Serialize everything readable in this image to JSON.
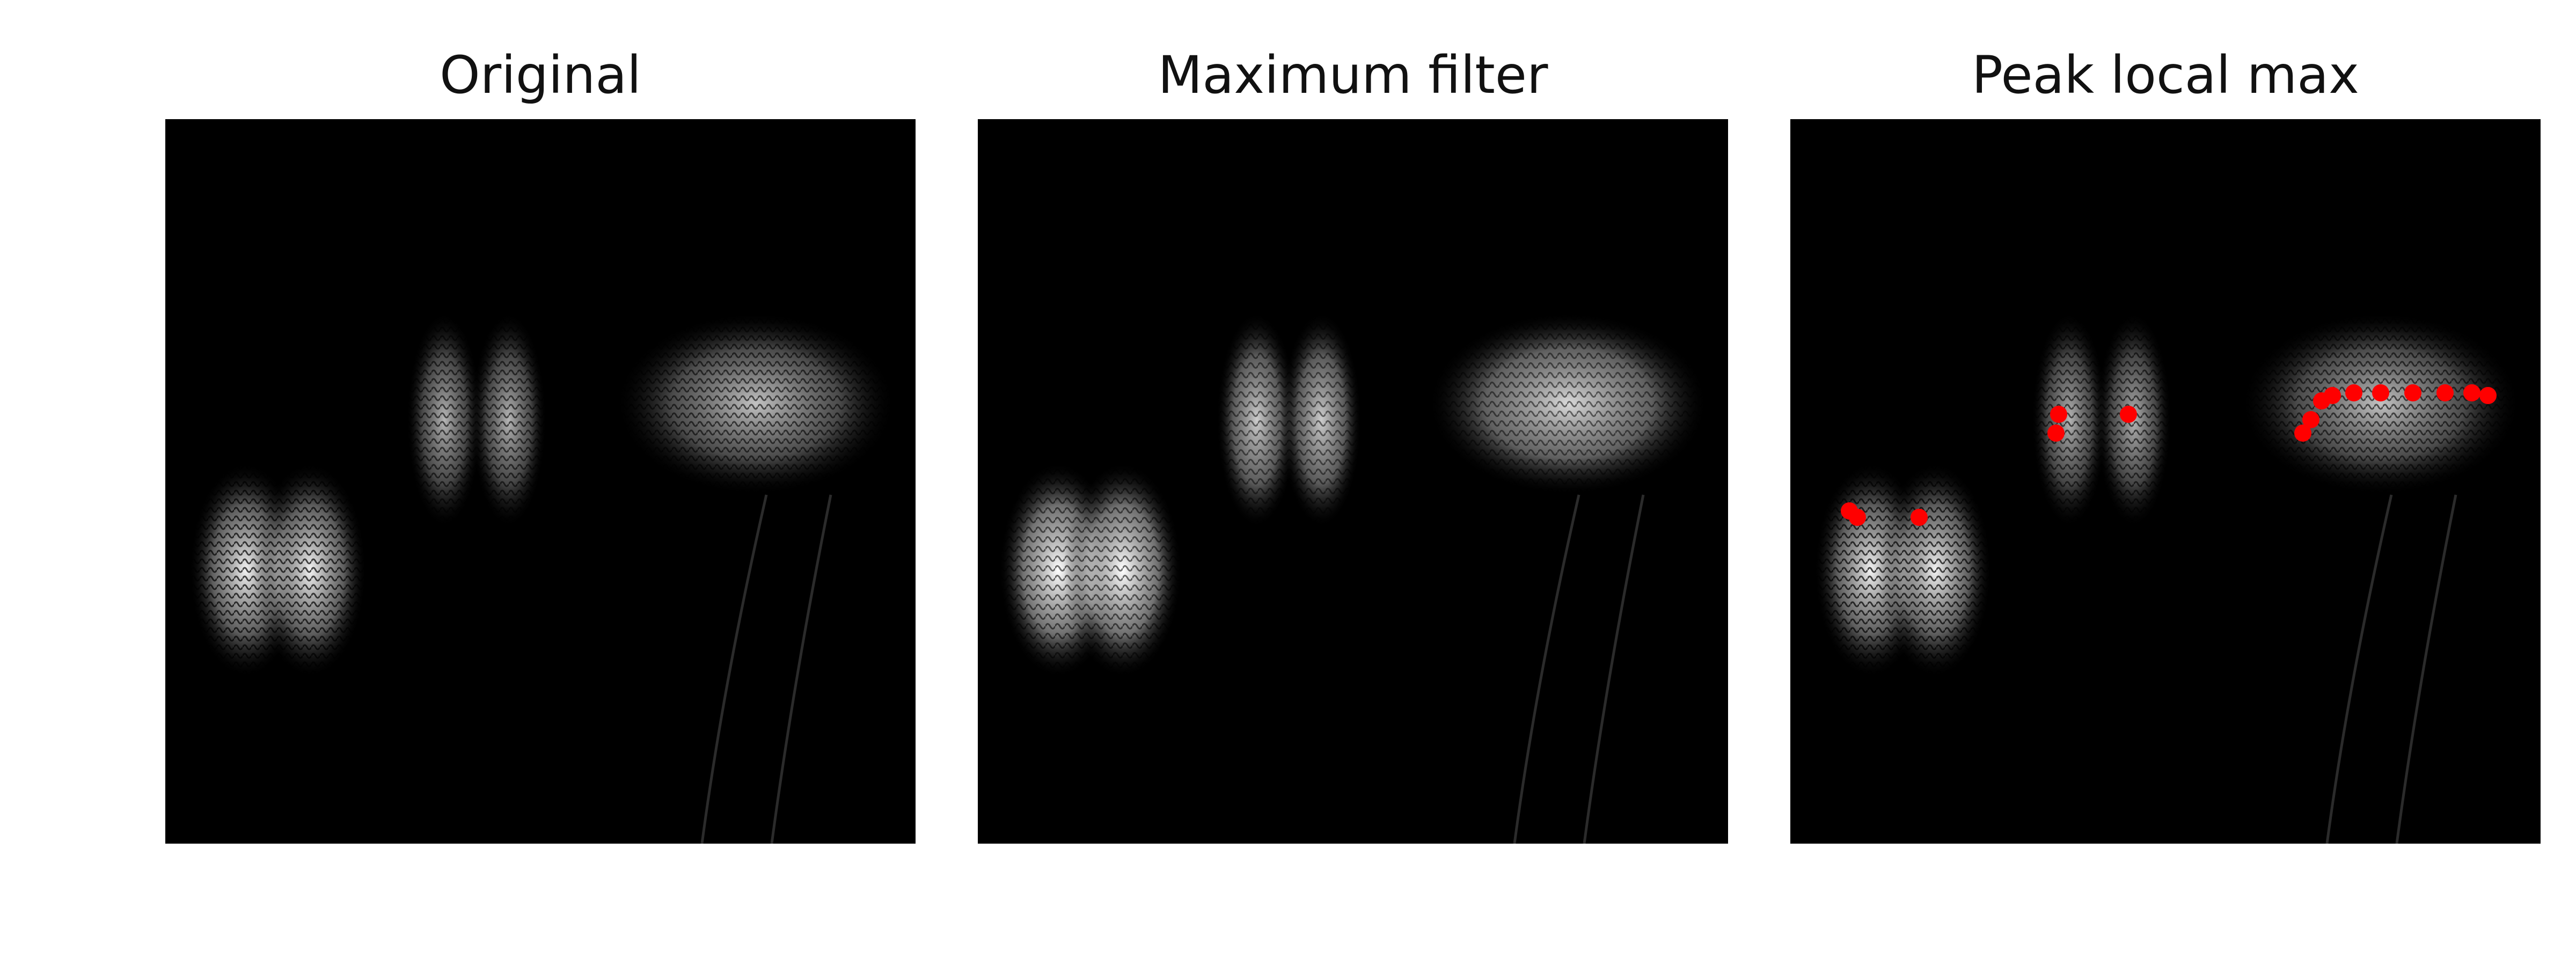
{
  "panels": [
    {
      "title": "Original"
    },
    {
      "title": "Maximum filter"
    },
    {
      "title": "Peak local max"
    }
  ],
  "colors": {
    "background": "#ffffff",
    "image_bg": "#000000",
    "peak_marker": "#ff0000"
  },
  "peaks": {
    "count_visible": 16
  }
}
